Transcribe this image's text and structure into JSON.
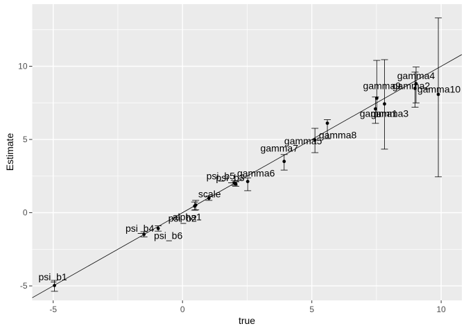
{
  "chart_data": {
    "type": "scatter",
    "title": "",
    "xlabel": "true",
    "ylabel": "Estimate",
    "xlim": [
      -5.81,
      10.8
    ],
    "ylim": [
      -5.99,
      14.24
    ],
    "x_major_ticks": [
      -5,
      0,
      5,
      10
    ],
    "y_major_ticks": [
      -5,
      0,
      5,
      10
    ],
    "x_minor_ticks": [
      -2.5,
      2.5,
      7.5
    ],
    "y_minor_ticks": [
      -2.5,
      2.5,
      7.5,
      12.5
    ],
    "grid": true,
    "legend": "none",
    "reference_line": {
      "slope": 1,
      "intercept": 0
    },
    "colors": {
      "panel_background": "#ebebeb",
      "gridline": "#ffffff",
      "points": "#000000",
      "error_bars": "#000000",
      "point_labels": "#000000",
      "tick_text": "#4d4d4d",
      "tick_mark": "#333333",
      "axis_title": "#000000",
      "figure_background": "#ffffff"
    },
    "points": [
      {
        "name": "psi_b1",
        "true": -4.95,
        "estimate": -4.97,
        "ci": [
          -5.37,
          -4.62
        ],
        "label_offset": [
          -2.5,
          -12.5
        ]
      },
      {
        "name": "psi_b6",
        "true": -1.49,
        "estimate": -1.48,
        "ci": [
          -1.66,
          -1.3
        ],
        "label_offset": [
          35,
          1.5
        ]
      },
      {
        "name": "psi_b4",
        "true": -0.94,
        "estimate": -1.08,
        "ci": [
          -1.26,
          -0.9
        ],
        "label_offset": [
          -26.5,
          -0.5
        ]
      },
      {
        "name": "psi_b2",
        "true": 0.47,
        "estimate": 0.45,
        "ci": [
          0.17,
          0.73
        ],
        "label_offset": [
          -17.5,
          17.5
        ]
      },
      {
        "name": "alpha1",
        "true": 0.51,
        "estimate": 0.52,
        "ci": [
          0.2,
          0.84
        ],
        "label_offset": [
          -12.5,
          17
        ]
      },
      {
        "name": "scale",
        "true": 1.02,
        "estimate": 0.99,
        "ci": [
          0.84,
          1.14
        ],
        "label_offset": [
          1,
          -6
        ]
      },
      {
        "name": "psi_b5",
        "true": 2.0,
        "estimate": 2.03,
        "ci": [
          1.87,
          2.19
        ],
        "label_offset": [
          -19.5,
          -10
        ]
      },
      {
        "name": "psi_b3",
        "true": 2.06,
        "estimate": 1.96,
        "ci": [
          1.81,
          2.11
        ],
        "label_offset": [
          -8,
          -9
        ]
      },
      {
        "name": "gamma6",
        "true": 2.52,
        "estimate": 2.13,
        "ci": [
          1.5,
          2.37
        ],
        "label_offset": [
          12,
          -12
        ]
      },
      {
        "name": "gamma7",
        "true": 3.93,
        "estimate": 3.5,
        "ci": [
          2.91,
          3.97
        ],
        "label_offset": [
          -7,
          -19
        ]
      },
      {
        "name": "gamma5",
        "true": 5.12,
        "estimate": 4.97,
        "ci": [
          4.1,
          5.76
        ],
        "label_offset": [
          -17,
          1.5
        ]
      },
      {
        "name": "gamma8",
        "true": 5.6,
        "estimate": 6.11,
        "ci": [
          5.05,
          6.35
        ],
        "label_offset": [
          15,
          17
        ]
      },
      {
        "name": "gamma1",
        "true": 7.46,
        "estimate": 7.09,
        "ci": [
          6.1,
          7.9
        ],
        "label_offset": [
          4.5,
          6.5
        ]
      },
      {
        "name": "gamma9",
        "true": 7.51,
        "estimate": 7.82,
        "ci": [
          6.55,
          10.4
        ],
        "label_offset": [
          7.5,
          -18
        ]
      },
      {
        "name": "gamma3",
        "true": 7.81,
        "estimate": 7.43,
        "ci": [
          4.34,
          10.45
        ],
        "label_offset": [
          7.5,
          14
        ]
      },
      {
        "name": "gamma2",
        "true": 8.99,
        "estimate": 8.49,
        "ci": [
          7.2,
          9.6
        ],
        "label_offset": [
          -5.5,
          -4
        ]
      },
      {
        "name": "gamma4",
        "true": 9.03,
        "estimate": 8.81,
        "ci": [
          7.5,
          9.95
        ],
        "label_offset": [
          0,
          -11.5
        ]
      },
      {
        "name": "gamma10",
        "true": 9.89,
        "estimate": 8.08,
        "ci": [
          2.45,
          13.3
        ],
        "label_offset": [
          1,
          -7.5
        ]
      }
    ]
  }
}
